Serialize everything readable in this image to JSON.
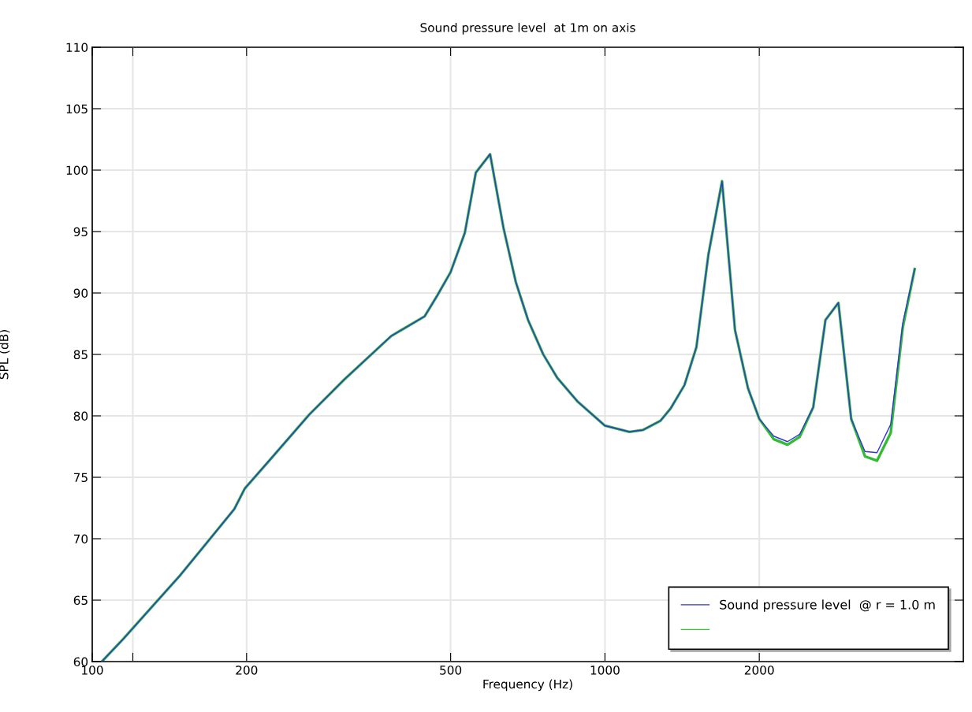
{
  "chart_data": {
    "type": "line",
    "title": "Sound pressure level  at 1m on axis",
    "xlabel": "Frequency (Hz)",
    "ylabel": "SPL (dB)",
    "log": "x",
    "xlim": [
      100,
      5000
    ],
    "xticks": [
      100,
      {
        "value": 120,
        "label": null
      },
      200,
      500,
      1000,
      2000
    ],
    "ylim": [
      60,
      110
    ],
    "yticks": [
      60,
      65,
      70,
      75,
      80,
      85,
      90,
      95,
      100,
      105,
      110
    ],
    "grid": true,
    "legend": "bottom right",
    "x": [
      104.4,
      114.7,
      148.6,
      189.2,
      198.5,
      224,
      265,
      310,
      383,
      445,
      471,
      500,
      533,
      560,
      597,
      634,
      670,
      708,
      758,
      807,
      885,
      1000,
      1116,
      1186,
      1283,
      1343,
      1429,
      1508,
      1591,
      1692,
      1793,
      1901,
      2000,
      2134,
      2270,
      2398,
      2548,
      2692,
      2853,
      3022,
      3215,
      3393,
      3608,
      3810,
      4019
    ],
    "series": [
      {
        "name": "Sound pressure level  @ r = 1.0 m",
        "color": "#3333dd",
        "values": [
          60,
          61.8,
          67.05,
          72.4,
          74.1,
          76.6,
          80.1,
          82.95,
          86.5,
          88.1,
          89.8,
          91.7,
          94.9,
          99.8,
          101.3,
          95.3,
          90.9,
          87.8,
          85.0,
          83.1,
          81.15,
          79.2,
          78.7,
          78.85,
          79.6,
          80.6,
          82.5,
          85.6,
          93.1,
          99.1,
          87.0,
          82.25,
          79.75,
          78.35,
          77.9,
          78.5,
          80.7,
          87.8,
          89.2,
          79.75,
          77.1,
          77.0,
          79.3,
          87.55,
          91.95
        ]
      },
      {
        "color": "#33bb33",
        "values": [
          60,
          61.8,
          67.05,
          72.4,
          74.1,
          76.6,
          80.1,
          82.95,
          86.5,
          88.1,
          89.8,
          91.7,
          94.9,
          99.8,
          101.3,
          95.3,
          90.9,
          87.8,
          85.0,
          83.1,
          81.15,
          79.2,
          78.7,
          78.85,
          79.6,
          80.6,
          82.5,
          85.6,
          93.1,
          99.1,
          87.0,
          82.25,
          79.75,
          78.1,
          77.65,
          78.3,
          80.7,
          87.8,
          89.2,
          79.75,
          76.7,
          76.35,
          78.6,
          87.2,
          91.95
        ]
      }
    ]
  }
}
